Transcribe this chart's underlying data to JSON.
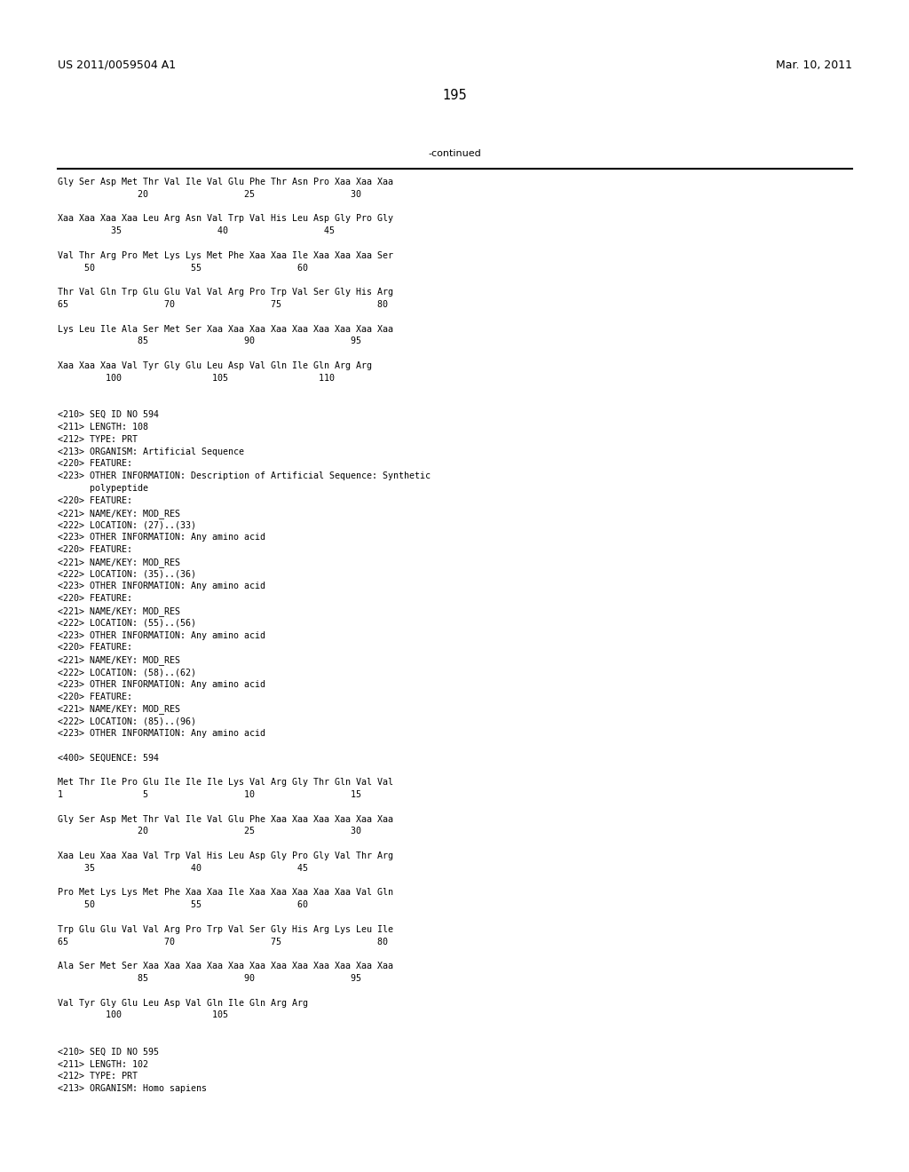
{
  "background_color": "#ffffff",
  "header_left": "US 2011/0059504 A1",
  "header_right": "Mar. 10, 2011",
  "page_number": "195",
  "continued_label": "-continued",
  "header_font_size": 9.0,
  "page_num_font_size": 10.5,
  "body_font_size": 7.2,
  "continued_font_size": 8.0,
  "body_lines": [
    "Gly Ser Asp Met Thr Val Ile Val Glu Phe Thr Asn Pro Xaa Xaa Xaa",
    "               20                  25                  30",
    "",
    "Xaa Xaa Xaa Xaa Leu Arg Asn Val Trp Val His Leu Asp Gly Pro Gly",
    "          35                  40                  45",
    "",
    "Val Thr Arg Pro Met Lys Lys Met Phe Xaa Xaa Ile Xaa Xaa Xaa Ser",
    "     50                  55                  60",
    "",
    "Thr Val Gln Trp Glu Glu Val Val Arg Pro Trp Val Ser Gly His Arg",
    "65                  70                  75                  80",
    "",
    "Lys Leu Ile Ala Ser Met Ser Xaa Xaa Xaa Xaa Xaa Xaa Xaa Xaa Xaa",
    "               85                  90                  95",
    "",
    "Xaa Xaa Xaa Val Tyr Gly Glu Leu Asp Val Gln Ile Gln Arg Arg",
    "         100                 105                 110",
    "",
    "",
    "<210> SEQ ID NO 594",
    "<211> LENGTH: 108",
    "<212> TYPE: PRT",
    "<213> ORGANISM: Artificial Sequence",
    "<220> FEATURE:",
    "<223> OTHER INFORMATION: Description of Artificial Sequence: Synthetic",
    "      polypeptide",
    "<220> FEATURE:",
    "<221> NAME/KEY: MOD_RES",
    "<222> LOCATION: (27)..(33)",
    "<223> OTHER INFORMATION: Any amino acid",
    "<220> FEATURE:",
    "<221> NAME/KEY: MOD_RES",
    "<222> LOCATION: (35)..(36)",
    "<223> OTHER INFORMATION: Any amino acid",
    "<220> FEATURE:",
    "<221> NAME/KEY: MOD_RES",
    "<222> LOCATION: (55)..(56)",
    "<223> OTHER INFORMATION: Any amino acid",
    "<220> FEATURE:",
    "<221> NAME/KEY: MOD_RES",
    "<222> LOCATION: (58)..(62)",
    "<223> OTHER INFORMATION: Any amino acid",
    "<220> FEATURE:",
    "<221> NAME/KEY: MOD_RES",
    "<222> LOCATION: (85)..(96)",
    "<223> OTHER INFORMATION: Any amino acid",
    "",
    "<400> SEQUENCE: 594",
    "",
    "Met Thr Ile Pro Glu Ile Ile Ile Lys Val Arg Gly Thr Gln Val Val",
    "1               5                  10                  15",
    "",
    "Gly Ser Asp Met Thr Val Ile Val Glu Phe Xaa Xaa Xaa Xaa Xaa Xaa",
    "               20                  25                  30",
    "",
    "Xaa Leu Xaa Xaa Val Trp Val His Leu Asp Gly Pro Gly Val Thr Arg",
    "     35                  40                  45",
    "",
    "Pro Met Lys Lys Met Phe Xaa Xaa Ile Xaa Xaa Xaa Xaa Xaa Val Gln",
    "     50                  55                  60",
    "",
    "Trp Glu Glu Val Val Arg Pro Trp Val Ser Gly His Arg Lys Leu Ile",
    "65                  70                  75                  80",
    "",
    "Ala Ser Met Ser Xaa Xaa Xaa Xaa Xaa Xaa Xaa Xaa Xaa Xaa Xaa Xaa",
    "               85                  90                  95",
    "",
    "Val Tyr Gly Glu Leu Asp Val Gln Ile Gln Arg Arg",
    "         100                 105",
    "",
    "",
    "<210> SEQ ID NO 595",
    "<211> LENGTH: 102",
    "<212> TYPE: PRT",
    "<213> ORGANISM: Homo sapiens"
  ]
}
